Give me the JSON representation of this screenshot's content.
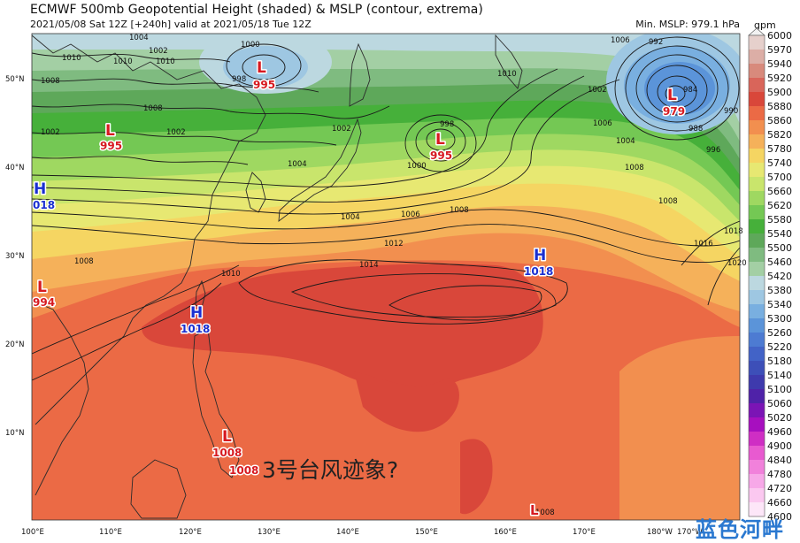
{
  "header": {
    "title": "ECMWF 500mb Geopotential Height (shaded) & MSLP (contour, extrema)",
    "subtitle": "2021/05/08 Sat 12Z [+240h] valid at 2021/05/18 Tue 12Z",
    "min_mslp": "Min. MSLP: 979.1 hPa"
  },
  "colorbar": {
    "unit": "gpm",
    "levels": [
      "6000",
      "5970",
      "5940",
      "5920",
      "5900",
      "5880",
      "5860",
      "5820",
      "5780",
      "5740",
      "5700",
      "5660",
      "5620",
      "5580",
      "5540",
      "5500",
      "5460",
      "5420",
      "5380",
      "5340",
      "5300",
      "5260",
      "5220",
      "5180",
      "5140",
      "5100",
      "5060",
      "5020",
      "4960",
      "4900",
      "4840",
      "4780",
      "4720",
      "4660",
      "4600"
    ],
    "colors": [
      "#f2f2f2",
      "#e6d0cc",
      "#dcaea6",
      "#d88a7c",
      "#d9655a",
      "#d9473a",
      "#eb6a45",
      "#f28f4f",
      "#f5b15a",
      "#f5d562",
      "#e7e872",
      "#c9e56c",
      "#9fd861",
      "#74c854",
      "#46b03a",
      "#5ea85a",
      "#7fbb80",
      "#a3cfa4",
      "#bcd8e0",
      "#9ec7e2",
      "#79afe0",
      "#5b94d9",
      "#4d7bd2",
      "#4263c7",
      "#3d4fb8",
      "#3e3aad",
      "#4f22a8",
      "#7b14b5",
      "#a70fbf",
      "#cf2ec4",
      "#e85ad0",
      "#f181db",
      "#f7a8e8",
      "#fbc8f0",
      "#fde6f8"
    ]
  },
  "map": {
    "lon_labels": [
      "100°E",
      "110°E",
      "120°E",
      "130°E",
      "140°E",
      "150°E",
      "160°E",
      "170°E",
      "180°W",
      "170°W"
    ],
    "lat_labels": [
      "50°N",
      "40°N",
      "30°N",
      "20°N",
      "10°N"
    ],
    "colors": {
      "c5500": "#5ea85a",
      "c5540": "#46b03a",
      "c5580": "#74c854",
      "c5620": "#9fd861",
      "c5660": "#c9e56c",
      "c5700": "#e7e872",
      "c5740": "#f5d562",
      "c5780": "#f5b15a",
      "c5820": "#f28f4f",
      "c5860": "#eb6a45",
      "c5880": "#d9473a",
      "c5460": "#7fbb80",
      "c5420": "#a3cfa4",
      "c5380": "#bcd8e0",
      "c5340": "#9ec7e2",
      "c5300": "#79afe0",
      "c5260": "#5b94d9",
      "land": "#2b2b2b"
    }
  },
  "pressure_centers": [
    {
      "kind": "L",
      "value": "995",
      "color": "red"
    },
    {
      "kind": "L",
      "value": "995",
      "color": "red"
    },
    {
      "kind": "L",
      "value": "995",
      "color": "red"
    },
    {
      "kind": "L",
      "value": "979",
      "color": "red"
    },
    {
      "kind": "H",
      "value": "018",
      "color": "blue"
    },
    {
      "kind": "L",
      "value": "994",
      "color": "red"
    },
    {
      "kind": "H",
      "value": "1018",
      "color": "blue"
    },
    {
      "kind": "H",
      "value": "1018",
      "color": "blue"
    },
    {
      "kind": "L",
      "value": "1008",
      "color": "red"
    },
    {
      "kind": "L",
      "value": "1008",
      "color": "red"
    },
    {
      "kind": "L",
      "value": "",
      "color": "red"
    }
  ],
  "isobar_labels": [
    "1004",
    "1000",
    "998",
    "1002",
    "1010",
    "1008",
    "1008",
    "1002",
    "1010",
    "1000",
    "998",
    "1002",
    "1004",
    "1006",
    "1008",
    "1010",
    "992",
    "988",
    "984",
    "990",
    "1002",
    "1006",
    "1004",
    "1008",
    "996",
    "1004",
    "1006",
    "1008",
    "1012",
    "1014",
    "1010",
    "1016",
    "1018",
    "1020",
    "1010",
    "1002",
    "1008",
    "1008"
  ],
  "annotation": "3号台风迹象?",
  "watermark": "蓝色河畔"
}
